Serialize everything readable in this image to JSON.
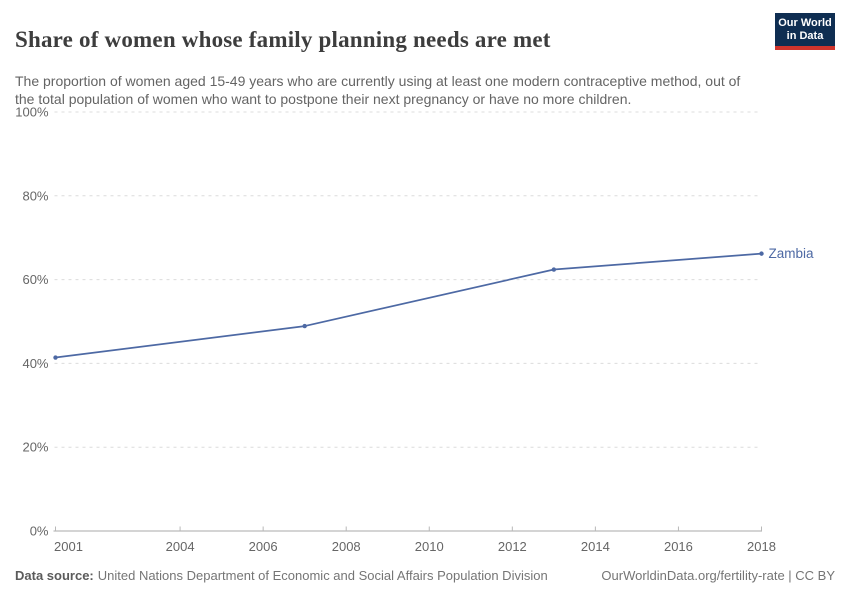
{
  "header": {
    "title": "Share of women whose family planning needs are met",
    "subtitle": "The proportion of women aged 15-49 years who are currently using at least one modern contraceptive method, out of the total population of women who want to postpone their next pregnancy or have no more children.",
    "logo": {
      "line1": "Our World",
      "line2": "in Data"
    }
  },
  "chart_data": {
    "type": "line",
    "title": "Share of women whose family planning needs are met",
    "xlabel": "",
    "ylabel": "",
    "xlim": [
      2001,
      2018
    ],
    "ylim": [
      0,
      100
    ],
    "x_ticks": [
      2001,
      2004,
      2006,
      2008,
      2010,
      2012,
      2014,
      2016,
      2018
    ],
    "y_ticks": [
      0,
      20,
      40,
      60,
      80,
      100
    ],
    "y_tick_suffix": "%",
    "grid": "horizontal-dashed",
    "legend_position": "end-of-line-label",
    "series": [
      {
        "name": "Zambia",
        "points": [
          {
            "x": 2001,
            "y": 41.4
          },
          {
            "x": 2007,
            "y": 48.9
          },
          {
            "x": 2013,
            "y": 62.4
          },
          {
            "x": 2018,
            "y": 66.2
          }
        ]
      }
    ]
  },
  "footer": {
    "source_label": "Data source:",
    "source_text": "United Nations Department of Economic and Social Affairs Population Division",
    "credit": "OurWorldinData.org/fertility-rate | CC BY"
  },
  "colors": {
    "background": "#ffffff",
    "title_text": "#3d3d3d",
    "subtitle_text": "#646464",
    "logo_bg": "#0f2e52",
    "logo_bar": "#d0342c",
    "logo_text": "#ffffff",
    "line": "#4d69a4",
    "grid": "#dcdcdc",
    "axis": "#a8a8a8",
    "tick_mark": "#b8b8b8",
    "tick_label": "#666666",
    "footer_text": "#757575",
    "footer_label_text": "#5b5b5b"
  }
}
